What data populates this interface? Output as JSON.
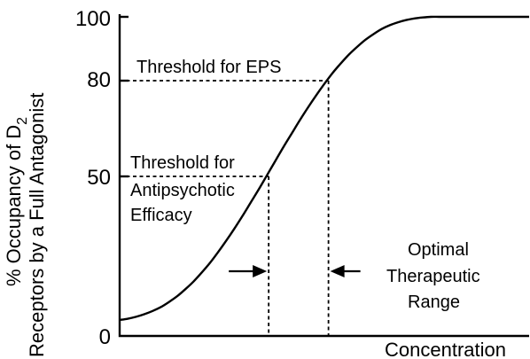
{
  "chart_data": {
    "type": "line",
    "title": "",
    "xlabel": "Concentration",
    "ylabel": {
      "line1_main": "% Occupancy of D",
      "line1_sub": "2",
      "line2": "Receptors by a Full Antagonist"
    },
    "ylim": [
      0,
      100
    ],
    "yticks": [
      0,
      50,
      80,
      100
    ],
    "grid": false,
    "series": [
      {
        "x": [
          0,
          2,
          4,
          6,
          8,
          10,
          12,
          14,
          16,
          18,
          20,
          22,
          24,
          26,
          28,
          30,
          32,
          34,
          36,
          38,
          40,
          42,
          44,
          46,
          48,
          50,
          52,
          54,
          56,
          58,
          60,
          62,
          64,
          66,
          68,
          70,
          72,
          74,
          76,
          78,
          80,
          82,
          84,
          86,
          88,
          90,
          92,
          94,
          96,
          98,
          100
        ],
        "values": [
          5,
          5.4,
          6,
          6.8,
          7.8,
          9,
          10.6,
          12.4,
          14.6,
          17,
          19.8,
          22.8,
          26.2,
          29.8,
          33.6,
          37.6,
          41.8,
          46,
          50.4,
          54.8,
          59.2,
          63.4,
          67.6,
          71.6,
          75.4,
          79,
          82.4,
          85.4,
          88.2,
          90.6,
          92.8,
          94.6,
          96.2,
          97.4,
          98.3,
          99,
          99.5,
          99.8,
          100,
          100,
          100,
          100,
          100,
          100,
          100,
          100,
          100,
          100,
          100,
          100,
          100
        ]
      }
    ],
    "thresholds": [
      {
        "label": "Threshold for EPS",
        "y": 80,
        "x": 51
      },
      {
        "label_lines": [
          "Threshold for",
          "Antipsychotic",
          "Efficacy"
        ],
        "y": 50,
        "x": 36.4
      }
    ],
    "annotation": {
      "label_lines": [
        "Optimal",
        "Therapeutic",
        "Range"
      ],
      "range": [
        36.4,
        51
      ]
    }
  }
}
